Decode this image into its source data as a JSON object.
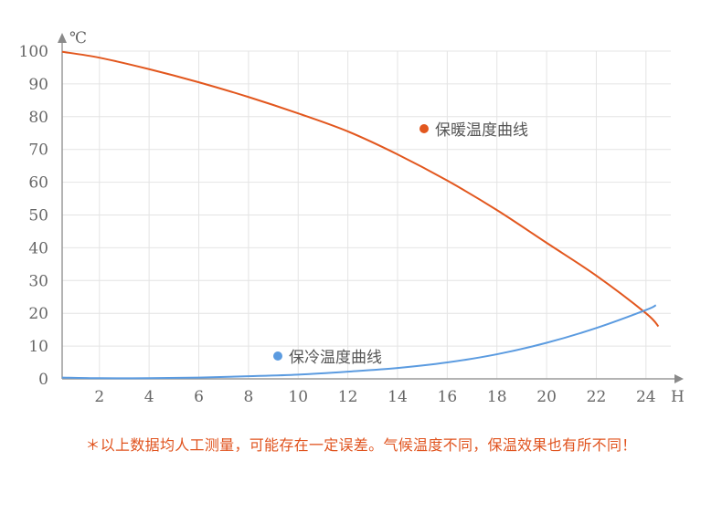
{
  "chart_data": {
    "type": "line",
    "xlabel": "H",
    "ylabel": "℃",
    "xlim": [
      0.5,
      25
    ],
    "ylim": [
      0,
      100
    ],
    "x_ticks": [
      2,
      4,
      6,
      8,
      10,
      12,
      14,
      16,
      18,
      20,
      22,
      24
    ],
    "y_ticks": [
      0,
      10,
      20,
      30,
      40,
      50,
      60,
      70,
      80,
      90,
      100
    ],
    "grid": true,
    "series": [
      {
        "name": "保暖温度曲线",
        "color": "#e2571e",
        "x": [
          0.5,
          2,
          4,
          6,
          8,
          10,
          12,
          14,
          16,
          18,
          20,
          22,
          24,
          24.5
        ],
        "y": [
          99.8,
          98,
          94.5,
          90.5,
          86,
          81,
          75.5,
          68.5,
          60.5,
          51.5,
          41.5,
          31.5,
          20,
          16
        ]
      },
      {
        "name": "保冷温度曲线",
        "color": "#5b9be0",
        "x": [
          0.5,
          2,
          4,
          6,
          8,
          10,
          12,
          14,
          16,
          18,
          20,
          22,
          24,
          24.4
        ],
        "y": [
          0.4,
          0.2,
          0.2,
          0.4,
          0.8,
          1.3,
          2.2,
          3.3,
          5,
          7.5,
          11,
          15.5,
          21,
          22.5
        ]
      }
    ],
    "note": "＊以上数据均人工测量，可能存在一定误差。气候温度不同，保温效果也有所不同！"
  }
}
